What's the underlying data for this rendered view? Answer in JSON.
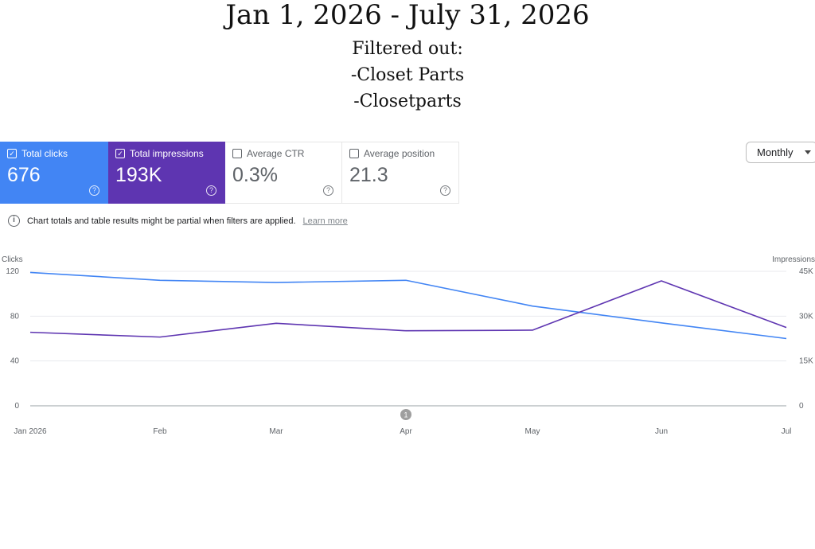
{
  "header": {
    "title": "Jan 1, 2026 - July 31, 2026",
    "filter_label": "Filtered out:",
    "filter_1": "-Closet Parts",
    "filter_2": "-Closetparts"
  },
  "metrics": {
    "clicks": {
      "label": "Total clicks",
      "value": "676",
      "checked": true,
      "color": "#4285f4"
    },
    "impressions": {
      "label": "Total impressions",
      "value": "193K",
      "checked": true,
      "color": "#5e35b1"
    },
    "ctr": {
      "label": "Average CTR",
      "value": "0.3%",
      "checked": false
    },
    "position": {
      "label": "Average position",
      "value": "21.3",
      "checked": false
    }
  },
  "granularity": {
    "selected": "Monthly"
  },
  "notice": {
    "text": "Chart totals and table results might be partial when filters are applied.",
    "link": "Learn more"
  },
  "chart_data": {
    "type": "line",
    "categories": [
      "Jan 2026",
      "Feb",
      "Mar",
      "Apr",
      "May",
      "Jun",
      "Jul"
    ],
    "series": [
      {
        "name": "Clicks",
        "axis": "left",
        "color": "#4285f4",
        "values": [
          119,
          112,
          110,
          112,
          89,
          74,
          60
        ]
      },
      {
        "name": "Impressions",
        "axis": "right",
        "color": "#5e35b1",
        "values": [
          24600,
          23000,
          27600,
          25100,
          25300,
          41800,
          26200
        ]
      }
    ],
    "ylabel": "Clicks",
    "ylabel_right": "Impressions",
    "y_left_ticks": [
      "0",
      "40",
      "80",
      "120"
    ],
    "y_right_ticks": [
      "0",
      "15K",
      "30K",
      "45K"
    ],
    "ylim_left": [
      0,
      120
    ],
    "ylim_right": [
      0,
      45000
    ],
    "annotation_marker": "1",
    "grid": true
  }
}
